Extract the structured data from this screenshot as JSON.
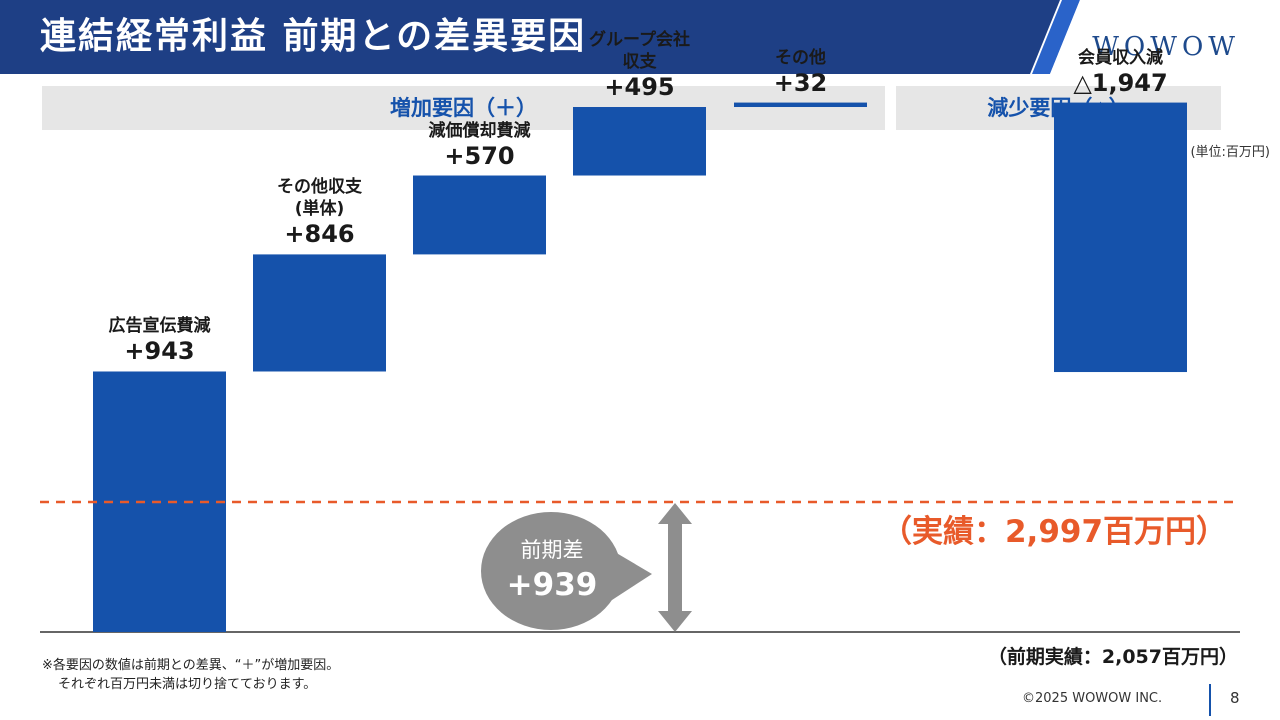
{
  "header": {
    "title": "連結経常利益 前期との差異要因",
    "logo": "WOWOW"
  },
  "sections": {
    "increase": "増加要因（＋）",
    "decrease": "減少要因（△）"
  },
  "unit": "(単位:百万円)",
  "chart_data": {
    "type": "bar",
    "subtype": "waterfall",
    "base_label": "前期実績：2,057百万円",
    "base_value": 2057,
    "actual_value": 2997,
    "steps": [
      {
        "name_lines": [
          "広告宣伝費減"
        ],
        "display": "+943",
        "value": 943
      },
      {
        "name_lines": [
          "その他収支",
          "(単体)"
        ],
        "display": "+846",
        "value": 846
      },
      {
        "name_lines": [
          "減価償却費減"
        ],
        "display": "+570",
        "value": 570
      },
      {
        "name_lines": [
          "グループ会社",
          "収支"
        ],
        "display": "+495",
        "value": 495
      },
      {
        "name_lines": [
          "その他"
        ],
        "display": "+32",
        "value": 32
      },
      {
        "name_lines": [
          "会員収入減"
        ],
        "display": "△1,947",
        "value": -1947
      }
    ],
    "colors": {
      "bar": "#1552ab",
      "actual_line": "#e85a2a",
      "bubble": "#8e8e8e"
    }
  },
  "actual_label": "（実績：2,997百万円）",
  "prev_label": "（前期実績：2,057百万円）",
  "diff": {
    "label": "前期差",
    "value": "+939"
  },
  "notes": [
    "※各要因の数値は前期との差異、“＋”が増加要因。",
    "それぞれ百万円未満は切り捨てております。"
  ],
  "footer": {
    "copyright": "©2025 WOWOW INC.",
    "page": "8"
  }
}
